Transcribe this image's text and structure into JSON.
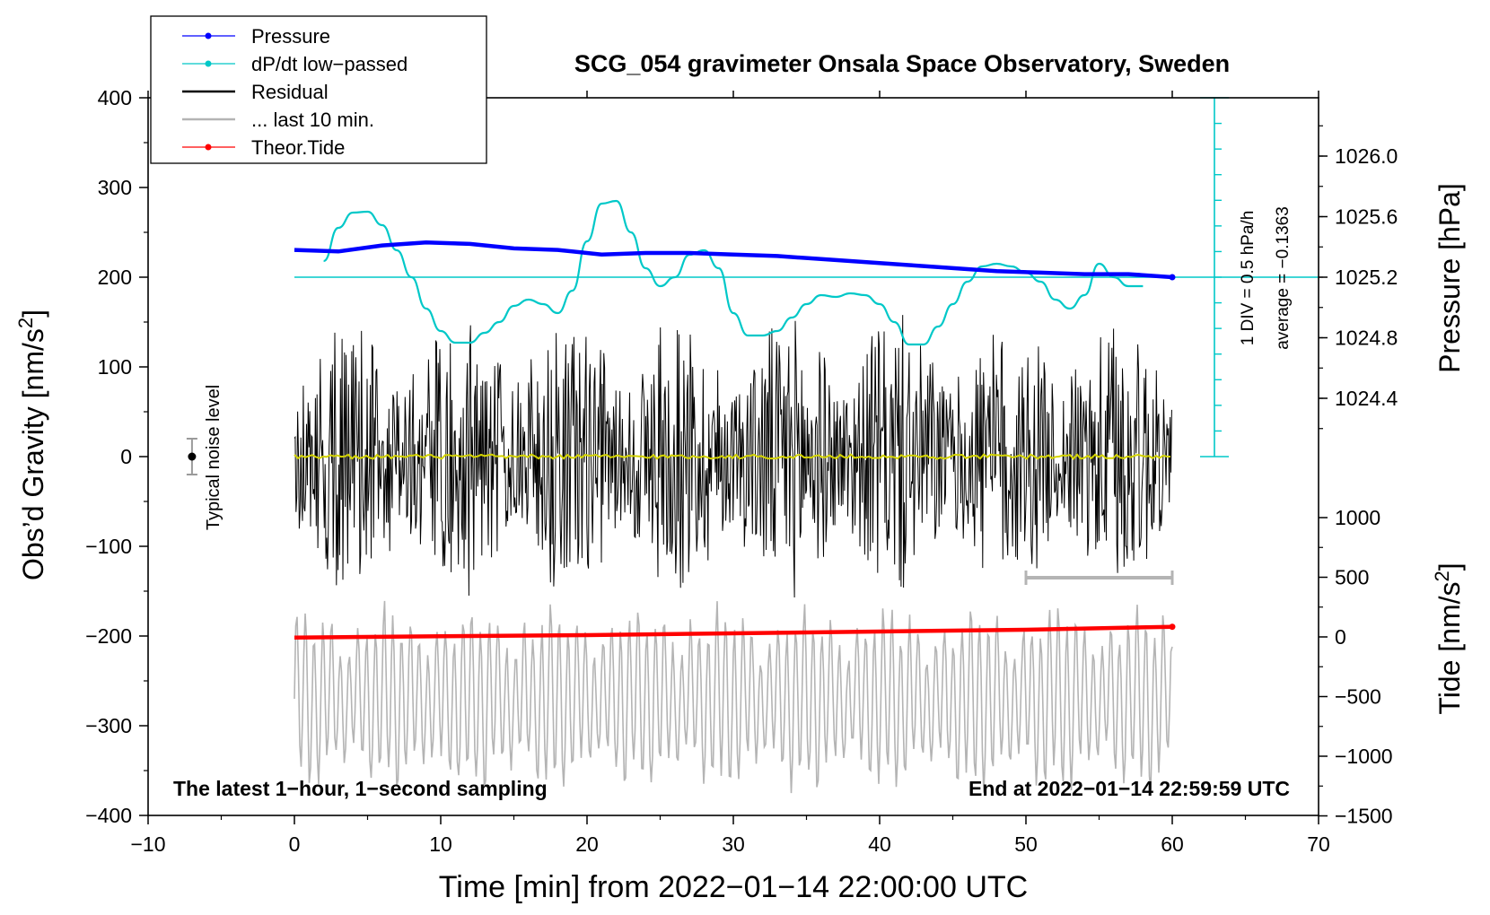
{
  "chart_data": {
    "type": "line",
    "title": "SCG_054 gravimeter Onsala Space Observatory, Sweden",
    "xlabel": "Time [min] from 2022−01−14 22:00:00 UTC",
    "ylabel_main": "Obs’d Gravity [nm/s",
    "ylabel_main_sup": "2",
    "ylabel_main_close": "]",
    "ylabel_pressure": "Pressure [hPa]",
    "ylabel_tide": "Tide [nm/s",
    "ylabel_tide_sup": "2",
    "ylabel_tide_close": "]",
    "xlim": [
      -10,
      70
    ],
    "ylim": [
      -400,
      400
    ],
    "x_ticks": [
      "−10",
      "0",
      "10",
      "20",
      "30",
      "40",
      "50",
      "60",
      "70"
    ],
    "y_ticks": [
      "400",
      "300",
      "200",
      "100",
      "0",
      "−100",
      "−200",
      "−300",
      "−400"
    ],
    "pressure_axis": {
      "range": [
        1024.0,
        1026.4
      ],
      "ticks": [
        "1026.0",
        "1025.6",
        "1025.2",
        "1024.8",
        "1024.4"
      ]
    },
    "tide_axis": {
      "range": [
        -1500,
        1000
      ],
      "ticks": [
        "1000",
        "500",
        "0",
        "−500",
        "−1000",
        "−1500"
      ]
    },
    "legend": {
      "position": "top-left",
      "entries": [
        {
          "label": "Pressure",
          "color": "#0000ff",
          "marker": true
        },
        {
          "label": "dP/dt low−passed",
          "color": "#00c8c8",
          "marker": true
        },
        {
          "label": "Residual",
          "color": "#000000",
          "marker": false
        },
        {
          "label": "... last 10 min.",
          "color": "#b4b4b4",
          "marker": false
        },
        {
          "label": "Theor.Tide",
          "color": "#ff0000",
          "marker": true
        }
      ]
    },
    "series": [
      {
        "name": "Pressure",
        "axis": "pressure",
        "color": "#0000ff",
        "x": [
          0,
          3,
          6,
          9,
          12,
          15,
          18,
          21,
          24,
          27,
          30,
          33,
          36,
          39,
          42,
          45,
          48,
          51,
          54,
          57,
          60
        ],
        "values": [
          1025.38,
          1025.37,
          1025.41,
          1025.43,
          1025.42,
          1025.39,
          1025.38,
          1025.35,
          1025.36,
          1025.36,
          1025.35,
          1025.34,
          1025.32,
          1025.3,
          1025.28,
          1025.26,
          1025.24,
          1025.23,
          1025.22,
          1025.22,
          1025.2
        ]
      },
      {
        "name": "dP/dt low-passed",
        "axis": "gravity",
        "color": "#00c8c8",
        "x": [
          2,
          3,
          4,
          5,
          6,
          7,
          8,
          9,
          10,
          11,
          12,
          13,
          14,
          15,
          16,
          17,
          18,
          19,
          20,
          21,
          22,
          23,
          24,
          25,
          26,
          27,
          28,
          29,
          30,
          31,
          32,
          33,
          34,
          35,
          36,
          37,
          38,
          39,
          40,
          41,
          42,
          43,
          44,
          45,
          46,
          47,
          48,
          49,
          50,
          51,
          52,
          53,
          54,
          55,
          56,
          57,
          58
        ],
        "values": [
          218,
          255,
          272,
          273,
          258,
          230,
          200,
          165,
          140,
          127,
          127,
          138,
          150,
          168,
          175,
          170,
          160,
          185,
          240,
          282,
          285,
          250,
          210,
          190,
          200,
          225,
          230,
          210,
          160,
          135,
          135,
          140,
          155,
          170,
          180,
          178,
          182,
          180,
          170,
          150,
          125,
          125,
          145,
          170,
          195,
          212,
          215,
          212,
          205,
          195,
          175,
          165,
          180,
          215,
          200,
          190,
          190
        ]
      },
      {
        "name": "Residual",
        "axis": "gravity",
        "color": "#000000",
        "x_range": [
          0,
          60
        ],
        "envelope_nm_s2": [
          -190,
          198
        ]
      },
      {
        "name": "Residual filtered",
        "axis": "gravity",
        "color": "#d4d400",
        "x_range": [
          0,
          60
        ],
        "values_approx": 0
      },
      {
        "name": "... last 10 min.",
        "axis": "gravity",
        "color": "#b4b4b4",
        "x_range": [
          0,
          60
        ],
        "envelope_nm_s2": [
          -360,
          -195
        ]
      },
      {
        "name": "Theor.Tide",
        "axis": "tide",
        "color": "#ff0000",
        "x": [
          0,
          10,
          20,
          30,
          40,
          50,
          60
        ],
        "values": [
          -5,
          5,
          15,
          30,
          45,
          60,
          85
        ]
      }
    ],
    "noise_level": {
      "label": "Typical noise level",
      "x": -7,
      "y": 0,
      "error": 20
    },
    "scale_bar": {
      "label_div": "1 DIV = 0.5 hPa/h",
      "label_avg": "average = −0.1363",
      "ticks": 14
    },
    "last10_marker": {
      "x_range": [
        50,
        60
      ],
      "y": -135
    },
    "annotations": {
      "bottom_left": "The latest 1−hour, 1−second sampling",
      "bottom_right": "End at 2022−01−14 22:59:59 UTC"
    }
  }
}
